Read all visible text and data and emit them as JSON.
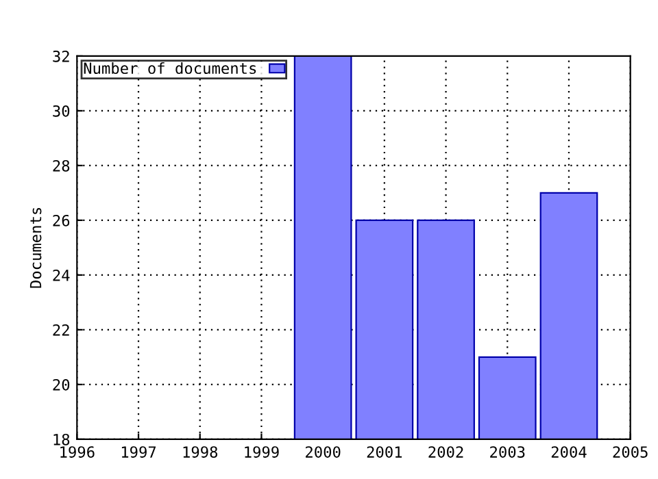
{
  "chart_data": {
    "type": "bar",
    "ylabel": "Documents",
    "x": [
      2000,
      2001,
      2002,
      2003,
      2004
    ],
    "series": [
      {
        "name": "Number of documents",
        "color": "#8080ff",
        "values": [
          32,
          26,
          26,
          21,
          27
        ]
      }
    ],
    "xlim": [
      1996,
      2005
    ],
    "xticks": [
      1996,
      1997,
      1998,
      1999,
      2000,
      2001,
      2002,
      2003,
      2004,
      2005
    ],
    "ylim": [
      18,
      32
    ],
    "yticks": [
      18,
      20,
      22,
      24,
      26,
      28,
      30,
      32
    ],
    "grid": true,
    "legend": "top left"
  }
}
